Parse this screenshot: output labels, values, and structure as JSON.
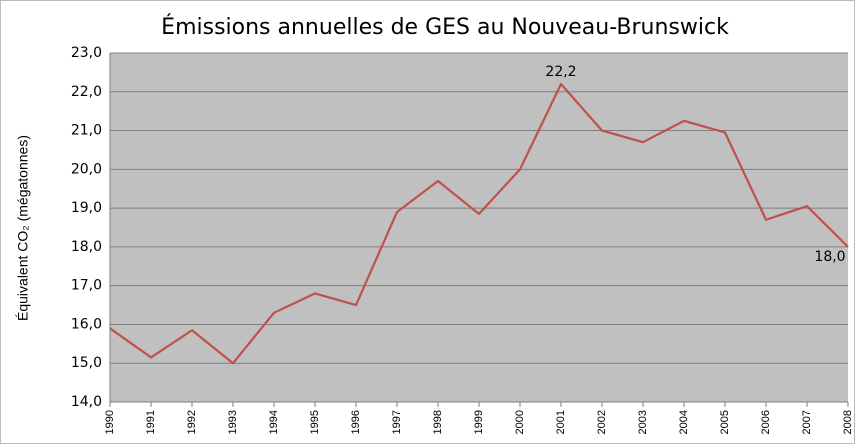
{
  "chart_data": {
    "type": "line",
    "title": "Émissions annuelles de GES au Nouveau-Brunswick",
    "y_label": "Équivalent CO₂ (mégatonnes)",
    "categories": [
      "1990",
      "1991",
      "1992",
      "1993",
      "1994",
      "1995",
      "1996",
      "1997",
      "1998",
      "1999",
      "2000",
      "2001",
      "2002",
      "2003",
      "2004",
      "2005",
      "2006",
      "2007",
      "2008"
    ],
    "series": [
      {
        "name": "Émissions",
        "color": "#c0504d",
        "values": [
          15.9,
          15.15,
          15.85,
          15.0,
          16.3,
          16.8,
          16.5,
          18.9,
          19.7,
          18.85,
          20.0,
          22.2,
          21.0,
          20.7,
          21.25,
          20.95,
          18.7,
          19.05,
          18.0
        ],
        "value_labels": [
          null,
          null,
          null,
          null,
          null,
          null,
          null,
          null,
          null,
          null,
          null,
          "22,2",
          null,
          null,
          null,
          null,
          null,
          null,
          "18,0"
        ]
      }
    ],
    "ylim": [
      14,
      23
    ],
    "yticks": [
      {
        "value": 14,
        "label": "14,0"
      },
      {
        "value": 15,
        "label": "15,0"
      },
      {
        "value": 16,
        "label": "16,0"
      },
      {
        "value": 17,
        "label": "17,0"
      },
      {
        "value": 18,
        "label": "18,0"
      },
      {
        "value": 19,
        "label": "19,0"
      },
      {
        "value": 20,
        "label": "20,0"
      },
      {
        "value": 21,
        "label": "21,0"
      },
      {
        "value": 22,
        "label": "22,0"
      },
      {
        "value": 23,
        "label": "23,0"
      }
    ],
    "grid": true
  }
}
